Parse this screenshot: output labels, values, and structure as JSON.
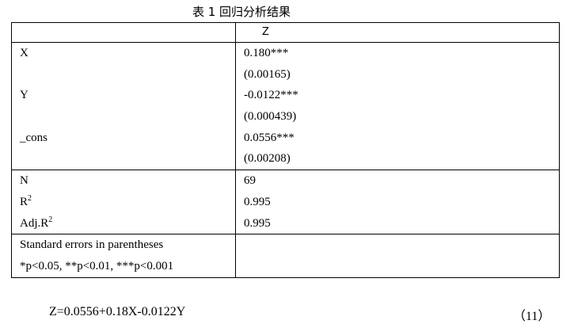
{
  "title": "表 1  回归分析结果",
  "header": {
    "col1": "",
    "col2": "Z"
  },
  "coefficients": [
    {
      "var": "X",
      "coef": "0.180***",
      "se": "(0.00165)"
    },
    {
      "var": "Y",
      "coef": "-0.0122***",
      "se": "(0.000439)"
    },
    {
      "var": "_cons",
      "coef": "0.0556***",
      "se": "(0.00208)"
    }
  ],
  "stats": [
    {
      "label": "N",
      "sup": "",
      "value": "69"
    },
    {
      "label": "R",
      "sup": "2",
      "value": "0.995"
    },
    {
      "label": "Adj.R",
      "sup": "2",
      "value": "0.995"
    }
  ],
  "notes": [
    "Standard errors in parentheses",
    "*p<0.05, **p<0.01, ***p<0.001"
  ],
  "equation": "Z=0.0556+0.18X-0.0122Y",
  "equation_number": "（11）"
}
